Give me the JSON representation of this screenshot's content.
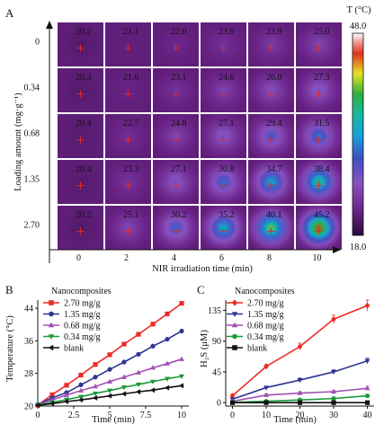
{
  "chart_data": [
    {
      "panel": "A",
      "type": "heatmap",
      "xlabel": "NIR irradiation time (min)",
      "ylabel": "Loading amount (mg·g⁻¹)",
      "x_categories": [
        "0",
        "2",
        "4",
        "6",
        "8",
        "10"
      ],
      "y_categories": [
        "0",
        "0.34",
        "0.68",
        "1.35",
        "2.70"
      ],
      "values": [
        [
          "20.2",
          "21.1",
          "22.0",
          "23.0",
          "23.9",
          "25.0"
        ],
        [
          "20.3",
          "21.6",
          "23.1",
          "24.6",
          "26.0",
          "27.3"
        ],
        [
          "20.4",
          "22.7",
          "24.8",
          "27.1",
          "29.4",
          "31.5"
        ],
        [
          "20.4",
          "23.3",
          "27.1",
          "30.8",
          "34.7",
          "38.4"
        ],
        [
          "20.2",
          "25.1",
          "30.2",
          "35.2",
          "40.1",
          "45.2"
        ]
      ],
      "colorbar": {
        "label": "T (°C)",
        "max_label": "48.0",
        "min_label": "18.0",
        "min": 18.0,
        "max": 48.0
      }
    },
    {
      "panel": "B",
      "type": "line",
      "xlabel": "Time (min)",
      "ylabel": "Temperature (°C)",
      "legend_title": "Nanocomposites",
      "legend_position": "top-left",
      "xlim": [
        0,
        10.5
      ],
      "ylim": [
        20,
        46
      ],
      "xticks": [
        "0",
        "2.5",
        "5",
        "7.5",
        "10"
      ],
      "yticks": [
        "20",
        "28",
        "36",
        "44"
      ],
      "x": [
        0,
        1,
        2,
        3,
        4,
        5,
        6,
        7,
        8,
        9,
        10
      ],
      "series": [
        {
          "name": "2.70 mg/g",
          "color": "#ee2a24",
          "marker": "square",
          "values": [
            20.2,
            22.8,
            25.1,
            27.6,
            30.2,
            32.6,
            35.2,
            37.6,
            40.1,
            42.6,
            45.2
          ]
        },
        {
          "name": "1.35 mg/g",
          "color": "#2e3592",
          "marker": "circle",
          "values": [
            20.4,
            22.0,
            23.3,
            25.2,
            27.1,
            29.0,
            30.8,
            32.7,
            34.7,
            36.4,
            38.4
          ]
        },
        {
          "name": "0.68 mg/g",
          "color": "#a250b4",
          "marker": "triangle-up",
          "values": [
            20.4,
            21.5,
            22.7,
            23.8,
            24.8,
            26.0,
            27.1,
            28.2,
            29.4,
            30.4,
            31.5
          ]
        },
        {
          "name": "0.34 mg/g",
          "color": "#1c9a3a",
          "marker": "triangle-down",
          "values": [
            20.3,
            20.9,
            21.6,
            22.3,
            23.1,
            23.8,
            24.6,
            25.3,
            26.0,
            26.7,
            27.3
          ]
        },
        {
          "name": "blank",
          "color": "#111111",
          "marker": "triangle-left",
          "values": [
            20.2,
            20.6,
            21.1,
            21.5,
            22.0,
            22.5,
            23.0,
            23.5,
            23.9,
            24.5,
            25.0
          ]
        }
      ]
    },
    {
      "panel": "C",
      "type": "line",
      "xlabel": "Time (min)",
      "ylabel": "H₂S (μM)",
      "legend_title": "Nanocomposites",
      "legend_position": "top-left",
      "xlim": [
        -2,
        42
      ],
      "ylim": [
        -5,
        150
      ],
      "xticks": [
        "0",
        "10",
        "20",
        "30",
        "40"
      ],
      "yticks": [
        "0",
        "45",
        "90",
        "135"
      ],
      "x": [
        0,
        10,
        20,
        30,
        40
      ],
      "series": [
        {
          "name": "2.70 mg/g",
          "color": "#ee2a24",
          "marker": "diamond",
          "values": [
            10,
            53,
            82,
            122,
            142
          ],
          "errors": [
            3,
            3,
            5,
            6,
            8
          ]
        },
        {
          "name": "1.35 mg/g",
          "color": "#2e3592",
          "marker": "triangle-down",
          "values": [
            5,
            22,
            33,
            45,
            61
          ],
          "errors": [
            2,
            2,
            3,
            3,
            4
          ]
        },
        {
          "name": "0.68 mg/g",
          "color": "#a250b4",
          "marker": "triangle-up",
          "values": [
            2,
            11,
            14,
            16,
            21
          ],
          "errors": [
            1,
            2,
            2,
            2,
            3
          ]
        },
        {
          "name": "0.34 mg/g",
          "color": "#1c9a3a",
          "marker": "circle",
          "values": [
            0.5,
            2,
            4,
            6,
            10
          ],
          "errors": [
            0.5,
            1,
            1,
            1,
            1
          ]
        },
        {
          "name": "blank",
          "color": "#111111",
          "marker": "square",
          "values": [
            0,
            0,
            0,
            0,
            0
          ],
          "errors": [
            0,
            0,
            0,
            0,
            0
          ]
        }
      ]
    }
  ],
  "panel_letters": {
    "a": "A",
    "b": "B",
    "c": "C"
  }
}
